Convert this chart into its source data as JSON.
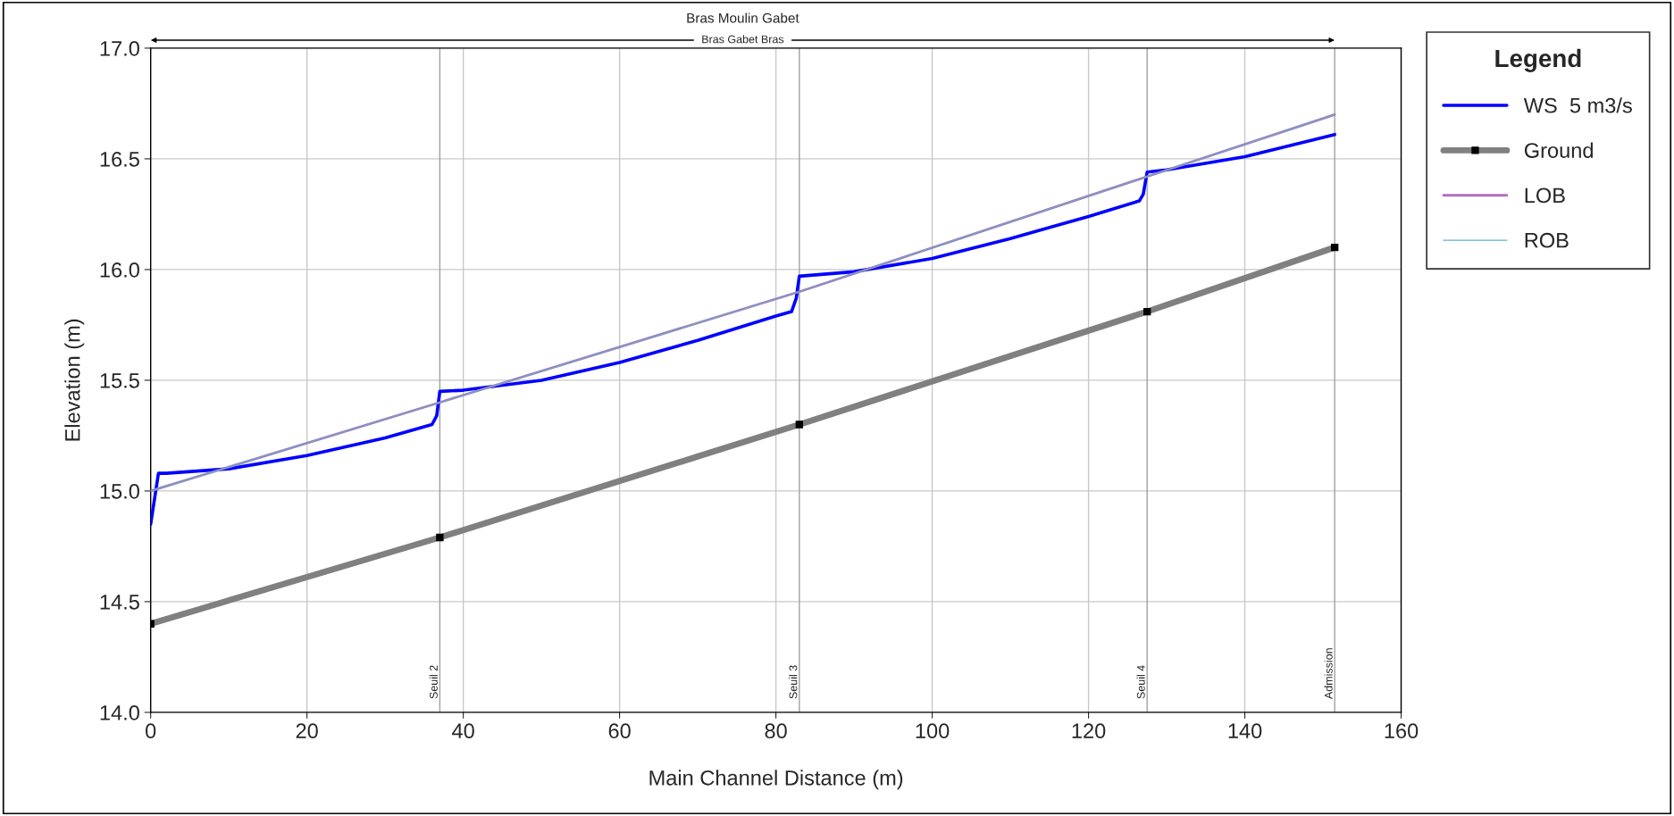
{
  "chart_data": {
    "type": "line",
    "title": "Bras Moulin Gabet",
    "xlabel": "Main Channel Distance (m)",
    "ylabel": "Elevation (m)",
    "legend_title": "Legend",
    "annotations": [
      "Bras Gabet Bras"
    ],
    "series": [
      {
        "name": "WS  5 m3/s",
        "color": "#0000ff",
        "x": [
          0,
          1,
          2,
          10,
          20,
          30,
          36,
          36.6,
          37,
          40,
          50,
          60,
          70,
          80,
          82,
          82.6,
          83,
          90,
          100,
          110,
          120,
          126.5,
          127,
          127.5,
          130,
          140,
          151.5
        ],
        "values": [
          14.85,
          15.08,
          15.08,
          15.1,
          15.16,
          15.24,
          15.3,
          15.34,
          15.45,
          15.455,
          15.5,
          15.58,
          15.68,
          15.79,
          15.81,
          15.87,
          15.97,
          15.99,
          16.05,
          16.14,
          16.24,
          16.31,
          16.34,
          16.44,
          16.45,
          16.51,
          16.61
        ]
      },
      {
        "name": "Ground",
        "color": "#808080",
        "marker": "square",
        "x": [
          0,
          37,
          83,
          127.5,
          151.5
        ],
        "values": [
          14.4,
          14.79,
          15.3,
          15.81,
          16.1
        ]
      },
      {
        "name": "LOB",
        "color": "#b070c0",
        "x": [
          0,
          37,
          83,
          127.5,
          151.5
        ],
        "values": [
          15.0,
          15.4,
          15.9,
          16.42,
          16.7
        ]
      },
      {
        "name": "ROB",
        "color": "#60b0c0",
        "x": [
          0,
          37,
          83,
          127.5,
          151.5
        ],
        "values": [
          15.0,
          15.4,
          15.9,
          16.42,
          16.7
        ]
      }
    ],
    "ref_lines": [
      {
        "axis": "x",
        "value": 37,
        "label": "Seuil 2",
        "color": "#a0a0a0"
      },
      {
        "axis": "x",
        "value": 83,
        "label": "Seuil 3",
        "color": "#a0a0a0"
      },
      {
        "axis": "x",
        "value": 127.5,
        "label": "Seuil 4",
        "color": "#a0a0a0"
      },
      {
        "axis": "x",
        "value": 151.5,
        "label": "Admission",
        "color": "#a0a0a0"
      }
    ],
    "xlim": [
      0,
      160
    ],
    "xticks": [
      0,
      20,
      40,
      60,
      80,
      100,
      120,
      140,
      160
    ],
    "ylim": [
      14.0,
      17.0
    ],
    "yticks": [
      {
        "value": 14.0,
        "label": "14.0"
      },
      {
        "value": 14.5,
        "label": "14.5"
      },
      {
        "value": 15.0,
        "label": "15.0"
      },
      {
        "value": 15.5,
        "label": "15.5"
      },
      {
        "value": 16.0,
        "label": "16.0"
      },
      {
        "value": 16.5,
        "label": "16.5"
      },
      {
        "value": 17.0,
        "label": "17.0"
      }
    ],
    "grid": true,
    "legend": "right"
  }
}
